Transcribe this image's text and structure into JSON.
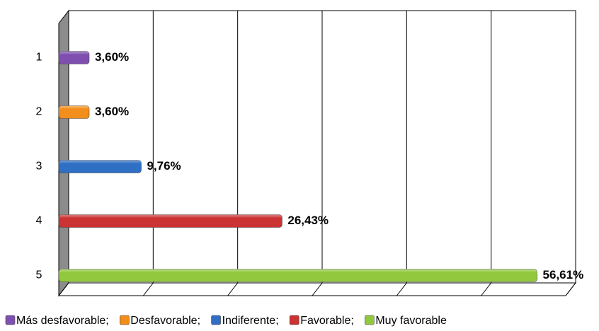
{
  "chart_data": {
    "type": "bar",
    "orientation": "horizontal",
    "categories": [
      "1",
      "2",
      "3",
      "4",
      "5"
    ],
    "series": [
      {
        "name": "Más desfavorable",
        "color": "#7f4fb0",
        "values": [
          3.6,
          null,
          null,
          null,
          null
        ],
        "value_labels": [
          "3,60%",
          null,
          null,
          null,
          null
        ]
      },
      {
        "name": "Desfavorable",
        "color": "#f28e1c",
        "values": [
          null,
          3.6,
          null,
          null,
          null
        ],
        "value_labels": [
          null,
          "3,60%",
          null,
          null,
          null
        ]
      },
      {
        "name": "Indiferente",
        "color": "#2f6fc4",
        "values": [
          null,
          null,
          9.76,
          null,
          null
        ],
        "value_labels": [
          null,
          null,
          "9,76%",
          null,
          null
        ]
      },
      {
        "name": "Favorable",
        "color": "#cc3333",
        "values": [
          null,
          null,
          null,
          26.43,
          null
        ],
        "value_labels": [
          null,
          null,
          null,
          "26,43%",
          null
        ]
      },
      {
        "name": "Muy favorable",
        "color": "#92c83e",
        "values": [
          null,
          null,
          null,
          null,
          56.61
        ],
        "value_labels": [
          null,
          null,
          null,
          null,
          "56,61%"
        ]
      }
    ],
    "xlim": [
      0,
      60
    ],
    "xticks": [
      0,
      10,
      20,
      30,
      40,
      50,
      60
    ],
    "grid": true
  }
}
